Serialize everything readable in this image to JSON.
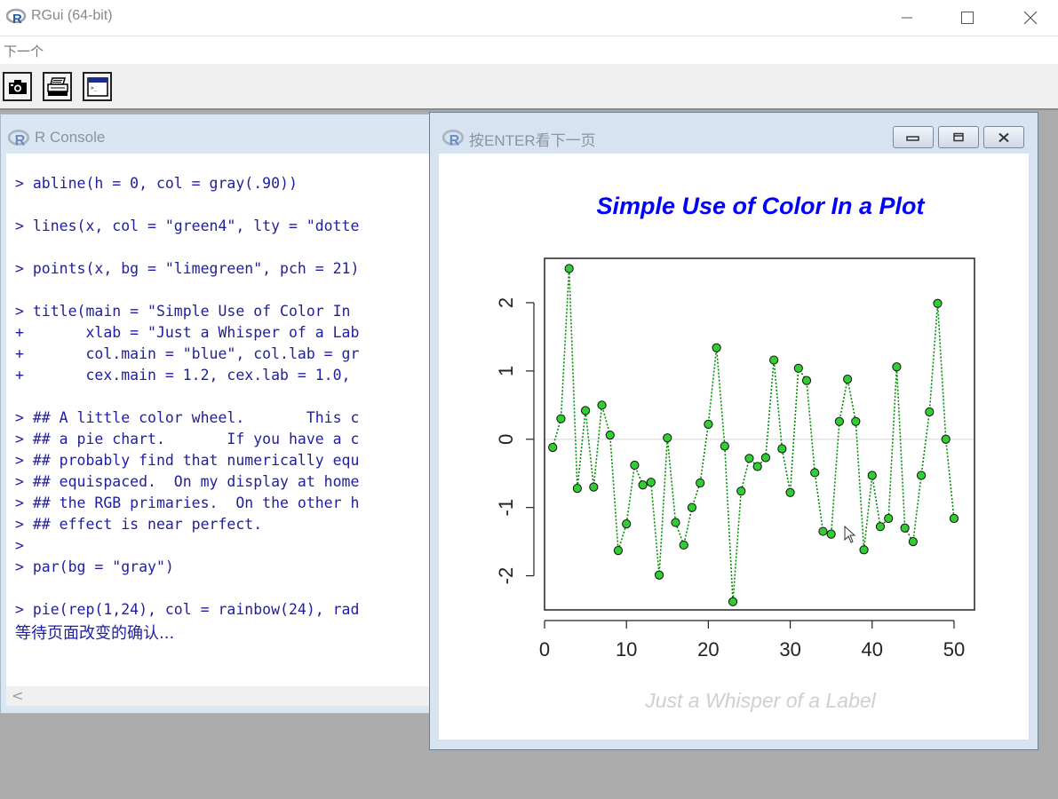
{
  "window": {
    "title": "RGui (64-bit)",
    "app_icon": "r-logo-icon",
    "controls": [
      "minimize-icon",
      "maximize-icon",
      "close-icon"
    ]
  },
  "menubar": {
    "items": [
      "下一个"
    ]
  },
  "toolbar": {
    "buttons": [
      "camera-icon",
      "printer-icon",
      "window-icon"
    ]
  },
  "console": {
    "title": "R Console",
    "lines": [
      "> abline(h = 0, col = gray(.90))",
      "> lines(x, col = \"green4\", lty = \"dotte",
      "> points(x, bg = \"limegreen\", pch = 21)",
      "> title(main = \"Simple Use of Color In ",
      "+       xlab = \"Just a Whisper of a Lab",
      "+       col.main = \"blue\", col.lab = gr",
      "+       cex.main = 1.2, cex.lab = 1.0, ",
      "> ## A little color wheel.       This c",
      "> ## a pie chart.       If you have a c",
      "> ## probably find that numerically equ",
      "> ## equispaced.  On my display at home",
      "> ## the RGB primaries.  On the other h",
      "> ## effect is near perfect.",
      ">",
      "> par(bg = \"gray\")",
      "> pie(rep(1,24), col = rainbow(24), rad"
    ],
    "status_line": "等待页面改变的确认...",
    "scroll_left": "<"
  },
  "plot_window": {
    "title": "按ENTER看下一页",
    "controls": [
      "minimize-icon",
      "restore-icon",
      "close-icon"
    ]
  },
  "chart_data": {
    "type": "scatter",
    "title": "Simple Use of Color In a Plot",
    "xlabel": "Just a Whisper of a Label",
    "ylabel": "",
    "x": [
      1,
      2,
      3,
      4,
      5,
      6,
      7,
      8,
      9,
      10,
      11,
      12,
      13,
      14,
      15,
      16,
      17,
      18,
      19,
      20,
      21,
      22,
      23,
      24,
      25,
      26,
      27,
      28,
      29,
      30,
      31,
      32,
      33,
      34,
      35,
      36,
      37,
      38,
      39,
      40,
      41,
      42,
      43,
      44,
      45,
      46,
      47,
      48,
      49,
      50
    ],
    "series": [
      {
        "values": [
          -0.12,
          0.3,
          2.5,
          -0.72,
          0.42,
          -0.7,
          0.5,
          0.06,
          -1.63,
          -1.24,
          -0.38,
          -0.67,
          -0.63,
          -1.99,
          0.02,
          -1.22,
          -1.55,
          -1.0,
          -0.64,
          0.22,
          1.34,
          -0.1,
          -2.38,
          -0.76,
          -0.28,
          -0.4,
          -0.27,
          1.16,
          -0.14,
          -0.78,
          1.04,
          0.86,
          -0.49,
          -1.35,
          -1.39,
          0.26,
          0.88,
          0.26,
          -1.62,
          -0.53,
          -1.28,
          -1.16,
          1.06,
          -1.3,
          -1.5,
          -0.53,
          0.4,
          1.99,
          0.0,
          -1.16
        ]
      }
    ],
    "xlim": [
      0,
      52.5
    ],
    "ylim": [
      -2.5,
      2.65
    ],
    "x_ticks": [
      "0",
      "10",
      "20",
      "30",
      "40",
      "50"
    ],
    "y_ticks": [
      "-2",
      "-1",
      "0",
      "1",
      "2"
    ],
    "grid": false,
    "colors": {
      "title": "#0000ff",
      "xlabel": "#cfcfcf",
      "line": "#008b00",
      "point_fill": "#32cd32",
      "abline": "#e5e5e5"
    }
  }
}
